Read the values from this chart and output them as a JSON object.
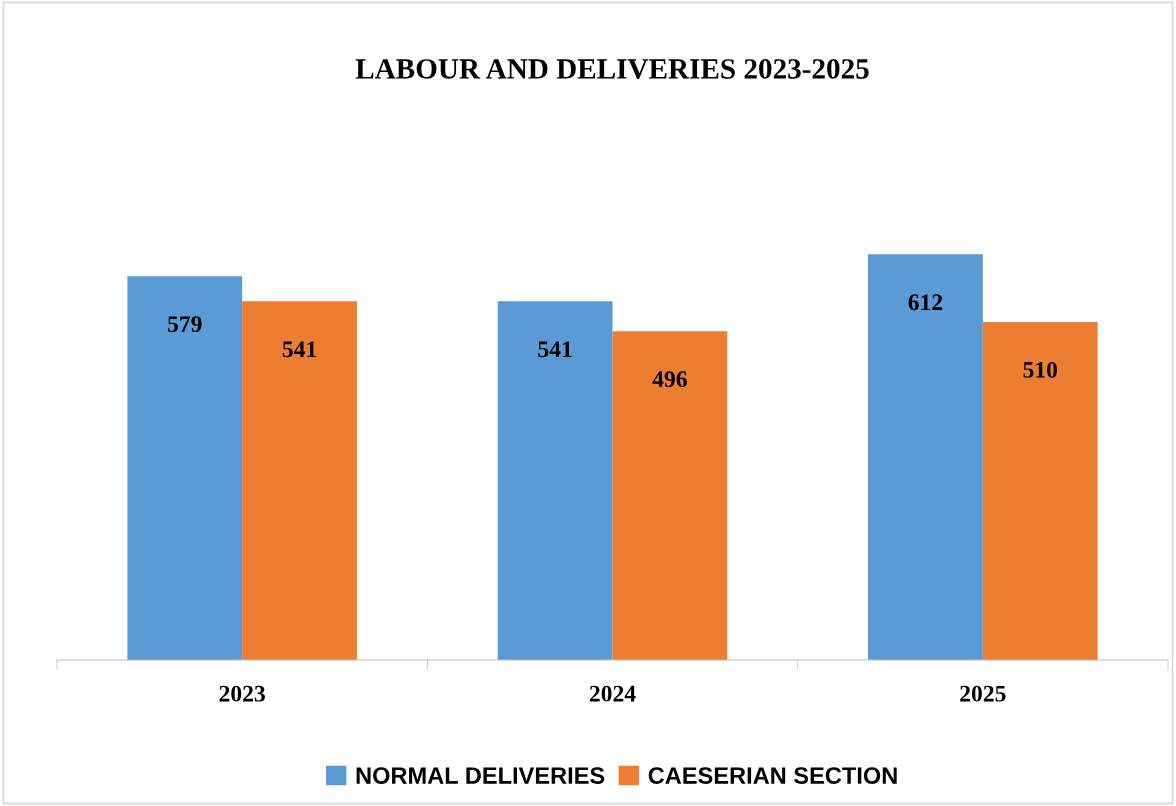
{
  "chart_data": {
    "type": "bar",
    "title": "LABOUR AND DELIVERIES 2023-2025",
    "categories": [
      "2023",
      "2024",
      "2025"
    ],
    "series": [
      {
        "name": "NORMAL DELIVERIES",
        "color": "#5b9bd5",
        "values": [
          579,
          541,
          612
        ]
      },
      {
        "name": "CAESERIAN SECTION",
        "color": "#ed7d31",
        "values": [
          541,
          496,
          510
        ]
      }
    ],
    "tick_labels": "x",
    "data_labels": true,
    "grid": false,
    "legend": "bottom"
  }
}
